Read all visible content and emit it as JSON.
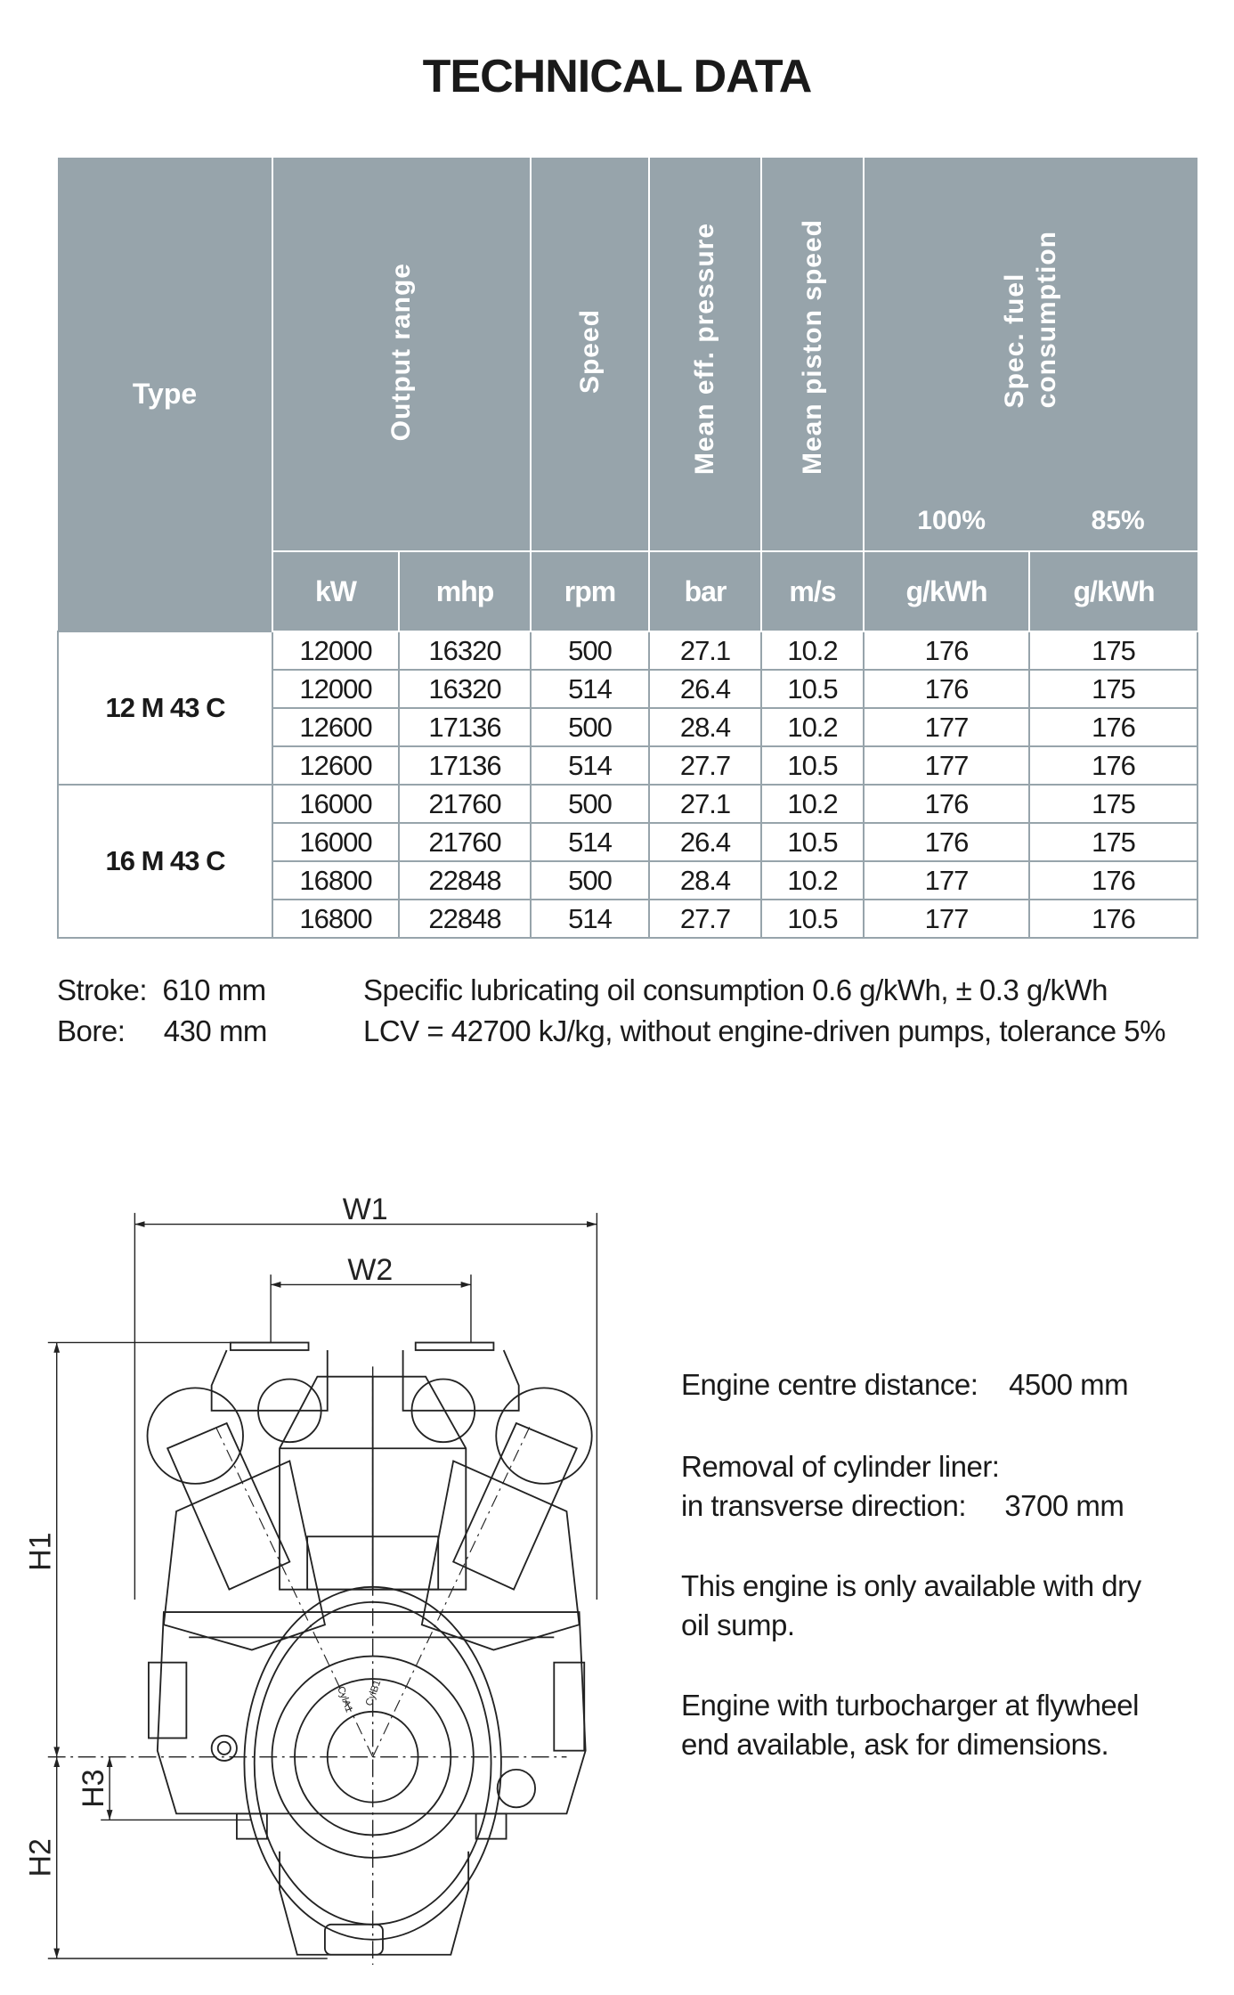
{
  "title": "TECHNICAL DATA",
  "table": {
    "headers": {
      "type": "Type",
      "output_range": "Output range",
      "speed": "Speed",
      "mean_eff_pressure": "Mean eff. pressure",
      "mean_piston_speed": "Mean piston speed",
      "spec_fuel_line1": "Spec. fuel",
      "spec_fuel_line2": "consumption",
      "load_100": "100%",
      "load_85": "85%"
    },
    "units": [
      "kW",
      "mhp",
      "rpm",
      "bar",
      "m/s",
      "g/kWh",
      "g/kWh"
    ],
    "groups": [
      {
        "type": "12 M 43 C",
        "rows": [
          [
            "12000",
            "16320",
            "500",
            "27.1",
            "10.2",
            "176",
            "175"
          ],
          [
            "12000",
            "16320",
            "514",
            "26.4",
            "10.5",
            "176",
            "175"
          ],
          [
            "12600",
            "17136",
            "500",
            "28.4",
            "10.2",
            "177",
            "176"
          ],
          [
            "12600",
            "17136",
            "514",
            "27.7",
            "10.5",
            "177",
            "176"
          ]
        ]
      },
      {
        "type": "16 M 43 C",
        "rows": [
          [
            "16000",
            "21760",
            "500",
            "27.1",
            "10.2",
            "176",
            "175"
          ],
          [
            "16000",
            "21760",
            "514",
            "26.4",
            "10.5",
            "176",
            "175"
          ],
          [
            "16800",
            "22848",
            "500",
            "28.4",
            "10.2",
            "177",
            "176"
          ],
          [
            "16800",
            "22848",
            "514",
            "27.7",
            "10.5",
            "177",
            "176"
          ]
        ]
      }
    ],
    "header_color": "#97a4ab"
  },
  "notes": {
    "stroke": "Stroke:  610 mm",
    "bore": "Bore:     430 mm",
    "lube": "Specific lubricating oil consumption 0.6 g/kWh, ± 0.3 g/kWh",
    "lcv": "LCV = 42700 kJ/kg, without engine-driven pumps, tolerance 5%"
  },
  "drawing": {
    "labels": {
      "w1": "W1",
      "w2": "W2",
      "h1": "H1",
      "h2": "H2",
      "h3": "H3",
      "cyl_a": "CylA1",
      "cyl_b": "CylB1"
    }
  },
  "info": {
    "centre_distance": "Engine centre distance:    4500 mm",
    "removal_1": "Removal of cylinder liner:",
    "removal_2": "in transverse direction:     3700 mm",
    "dry_sump_1": "This engine is only available with dry",
    "dry_sump_2": "oil sump.",
    "turbo_1": "Engine with turbocharger at flywheel",
    "turbo_2": "end available, ask for dimensions."
  }
}
